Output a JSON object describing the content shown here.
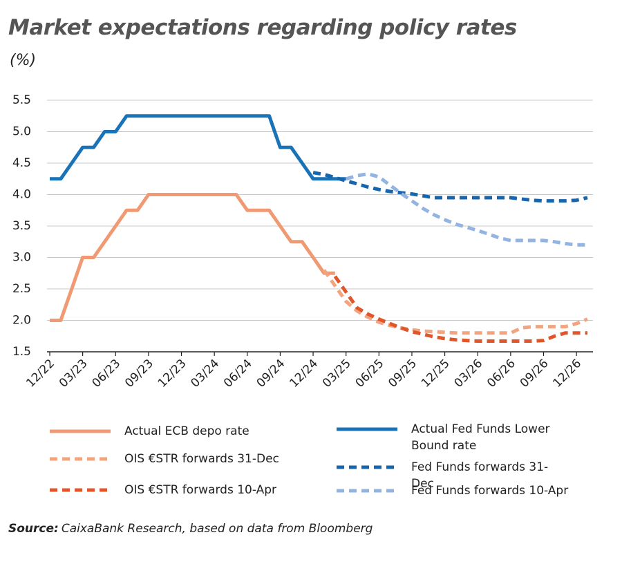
{
  "chart_data": {
    "type": "line",
    "title": "Market expectations regarding policy rates",
    "subtitle": "(%)",
    "categories": [
      "12/22",
      null,
      null,
      "03/23",
      null,
      null,
      "06/23",
      null,
      null,
      "09/23",
      null,
      null,
      "12/23",
      null,
      null,
      "03/24",
      null,
      null,
      "06/24",
      null,
      null,
      "09/24",
      null,
      null,
      "12/24",
      null,
      null,
      "03/25",
      null,
      null,
      "06/25",
      null,
      null,
      "09/25",
      null,
      null,
      "12/25",
      null,
      null,
      "03/26",
      null,
      null,
      "06/26",
      null,
      null,
      "09/26",
      null,
      null,
      "12/26",
      null
    ],
    "ylim": [
      1.5,
      5.5
    ],
    "yticks": [
      1.5,
      {
        "value": 2,
        "label": "2.0"
      },
      2.5,
      {
        "value": 3,
        "label": "3.0"
      },
      3.5,
      {
        "value": 4,
        "label": "4.0"
      },
      4.5,
      {
        "value": 5,
        "label": "5.0"
      },
      5.5
    ],
    "grid": true,
    "series": [
      {
        "name": "Actual ECB depo rate",
        "color": "#f09a74",
        "dashed": false,
        "values": [
          2.0,
          2.0,
          2.5,
          3.0,
          3.0,
          3.25,
          3.5,
          3.75,
          3.75,
          4.0,
          4.0,
          4.0,
          4.0,
          4.0,
          4.0,
          4.0,
          4.0,
          4.0,
          3.75,
          3.75,
          3.75,
          3.5,
          3.25,
          3.25,
          3.0,
          2.75,
          2.75,
          null,
          null,
          null,
          null,
          null,
          null,
          null,
          null,
          null,
          null,
          null,
          null,
          null,
          null,
          null,
          null,
          null,
          null,
          null,
          null,
          null,
          null,
          null
        ]
      },
      {
        "name": "OIS €STR forwards 31-Dec",
        "color": "#f2a47f",
        "dashed": true,
        "values": [
          null,
          null,
          null,
          null,
          null,
          null,
          null,
          null,
          null,
          null,
          null,
          null,
          null,
          null,
          null,
          null,
          null,
          null,
          null,
          null,
          null,
          null,
          null,
          null,
          null,
          2.8,
          2.55,
          2.3,
          2.15,
          2.05,
          1.97,
          1.92,
          1.88,
          1.85,
          1.83,
          1.82,
          1.81,
          1.8,
          1.8,
          1.8,
          1.8,
          1.8,
          1.8,
          1.88,
          1.9,
          1.9,
          1.9,
          1.9,
          1.95,
          2.02
        ]
      },
      {
        "name": "OIS €STR forwards 10-Apr",
        "color": "#e0552a",
        "dashed": true,
        "values": [
          null,
          null,
          null,
          null,
          null,
          null,
          null,
          null,
          null,
          null,
          null,
          null,
          null,
          null,
          null,
          null,
          null,
          null,
          null,
          null,
          null,
          null,
          null,
          null,
          null,
          null,
          2.7,
          2.45,
          2.2,
          2.1,
          2.02,
          1.95,
          1.88,
          1.82,
          1.78,
          1.74,
          1.71,
          1.69,
          1.68,
          1.67,
          1.67,
          1.67,
          1.67,
          1.67,
          1.67,
          1.68,
          1.75,
          1.8,
          1.8,
          1.8
        ]
      },
      {
        "name": "Actual Fed Funds Lower Bound rate",
        "color": "#1b73b7",
        "dashed": false,
        "values": [
          4.25,
          4.25,
          4.5,
          4.75,
          4.75,
          5.0,
          5.0,
          5.25,
          5.25,
          5.25,
          5.25,
          5.25,
          5.25,
          5.25,
          5.25,
          5.25,
          5.25,
          5.25,
          5.25,
          5.25,
          5.25,
          4.75,
          4.75,
          4.5,
          4.25,
          4.25,
          4.25,
          4.25,
          null,
          null,
          null,
          null,
          null,
          null,
          null,
          null,
          null,
          null,
          null,
          null,
          null,
          null,
          null,
          null,
          null,
          null,
          null,
          null,
          null,
          null
        ]
      },
      {
        "name": "Fed Funds forwards 31-Dec",
        "color": "#1666ae",
        "dashed": true,
        "values": [
          null,
          null,
          null,
          null,
          null,
          null,
          null,
          null,
          null,
          null,
          null,
          null,
          null,
          null,
          null,
          null,
          null,
          null,
          null,
          null,
          null,
          null,
          null,
          null,
          4.35,
          4.32,
          4.27,
          4.22,
          4.17,
          4.12,
          4.08,
          4.05,
          4.03,
          4.01,
          3.98,
          3.95,
          3.95,
          3.95,
          3.95,
          3.95,
          3.95,
          3.95,
          3.95,
          3.93,
          3.91,
          3.9,
          3.9,
          3.9,
          3.91,
          3.95
        ]
      },
      {
        "name": "Fed Funds forwards 10-Apr",
        "color": "#93b3e0",
        "dashed": true,
        "values": [
          null,
          null,
          null,
          null,
          null,
          null,
          null,
          null,
          null,
          null,
          null,
          null,
          null,
          null,
          null,
          null,
          null,
          null,
          null,
          null,
          null,
          null,
          null,
          null,
          null,
          null,
          null,
          4.25,
          4.3,
          4.33,
          4.28,
          4.15,
          4.02,
          3.9,
          3.78,
          3.68,
          3.6,
          3.53,
          3.48,
          3.43,
          3.37,
          3.31,
          3.27,
          3.27,
          3.27,
          3.27,
          3.25,
          3.22,
          3.2,
          3.2
        ]
      }
    ],
    "source": {
      "label": "Source:",
      "text": "CaixaBank Research, based on data from Bloomberg"
    }
  }
}
